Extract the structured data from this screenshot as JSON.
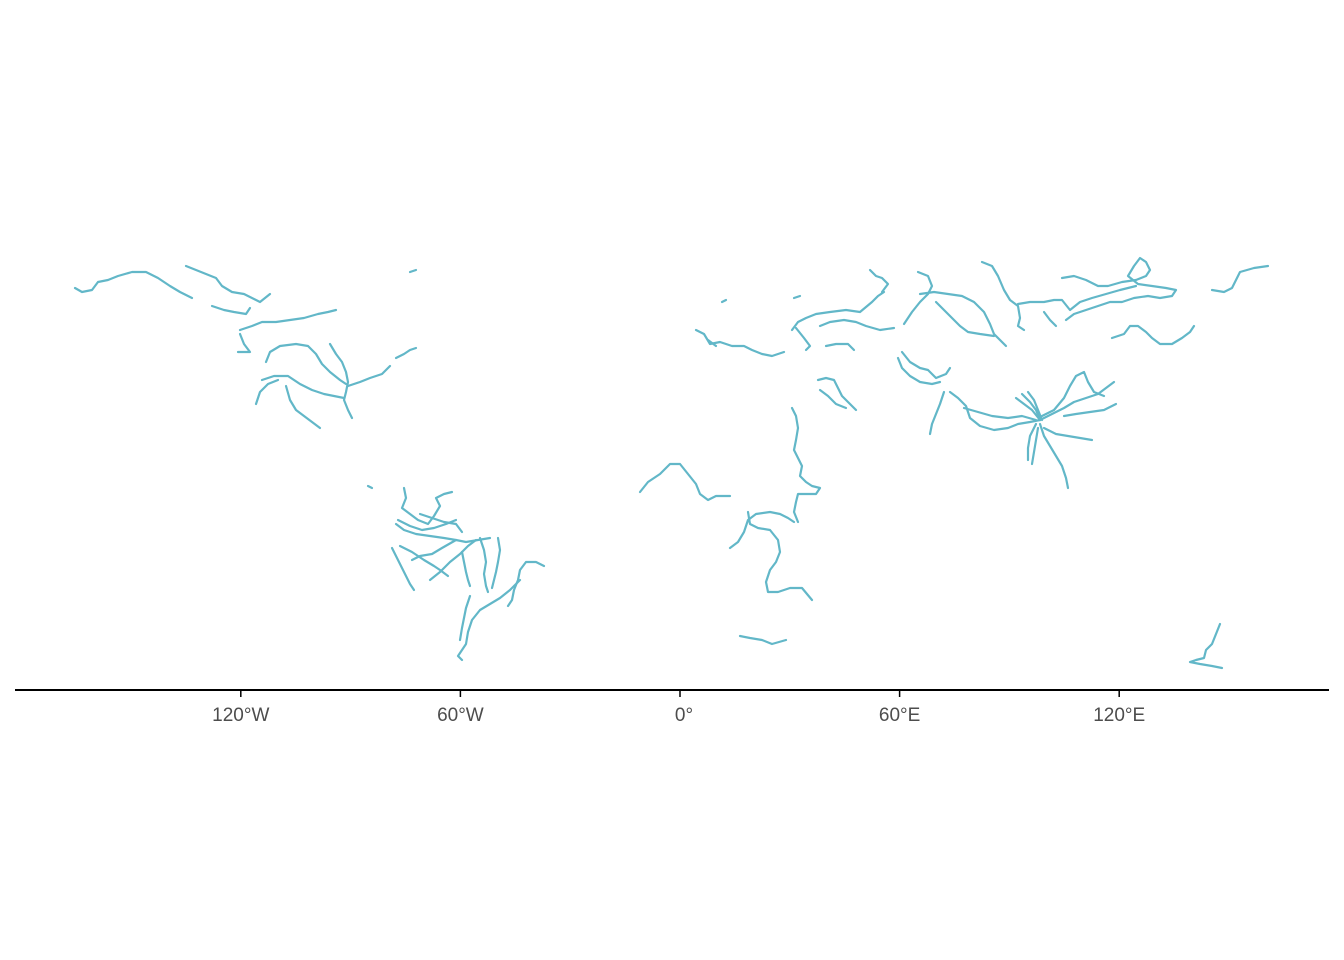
{
  "map": {
    "feature": "rivers",
    "projection": "equirectangular",
    "axis": {
      "ticks": [
        {
          "lon": -120,
          "label": "120°W"
        },
        {
          "lon": -60,
          "label": "60°W"
        },
        {
          "lon": 0,
          "label": "0°"
        },
        {
          "lon": 60,
          "label": "60°E"
        },
        {
          "lon": 120,
          "label": "120°E"
        }
      ]
    },
    "colors": {
      "river": "#62b7c8",
      "axis": "#000000",
      "tick_label": "#4d4d4d",
      "background": "#ffffff"
    }
  }
}
